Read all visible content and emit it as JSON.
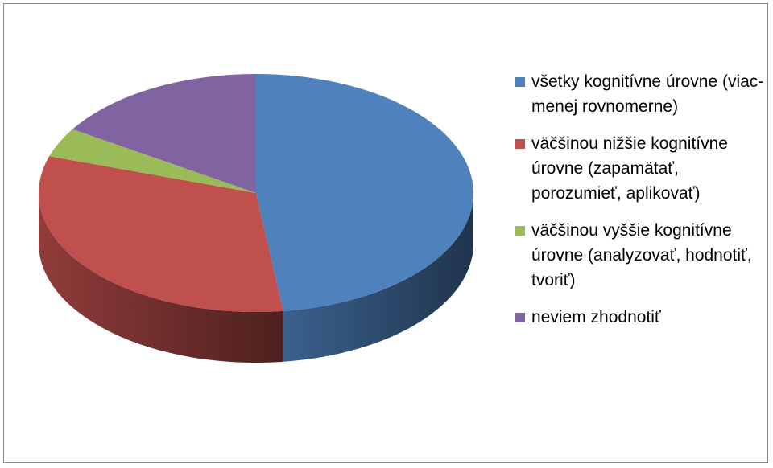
{
  "chart_data": {
    "type": "pie3d",
    "categories": [
      "všetky kognitívne úrovne (viac-menej rovnomerne)",
      "väčšinou nižšie kognitívne úrovne (zapamätať, porozumieť, aplikovať)",
      "väčšinou vyššie kognitívne úrovne (analyzovať, hodnotiť, tvoriť)",
      "neviem zhodnotiť"
    ],
    "values": [
      48,
      32,
      4,
      16
    ],
    "colors": [
      "#4f81bd",
      "#c0504d",
      "#9bbb59",
      "#8064a2"
    ],
    "legend": "right"
  }
}
